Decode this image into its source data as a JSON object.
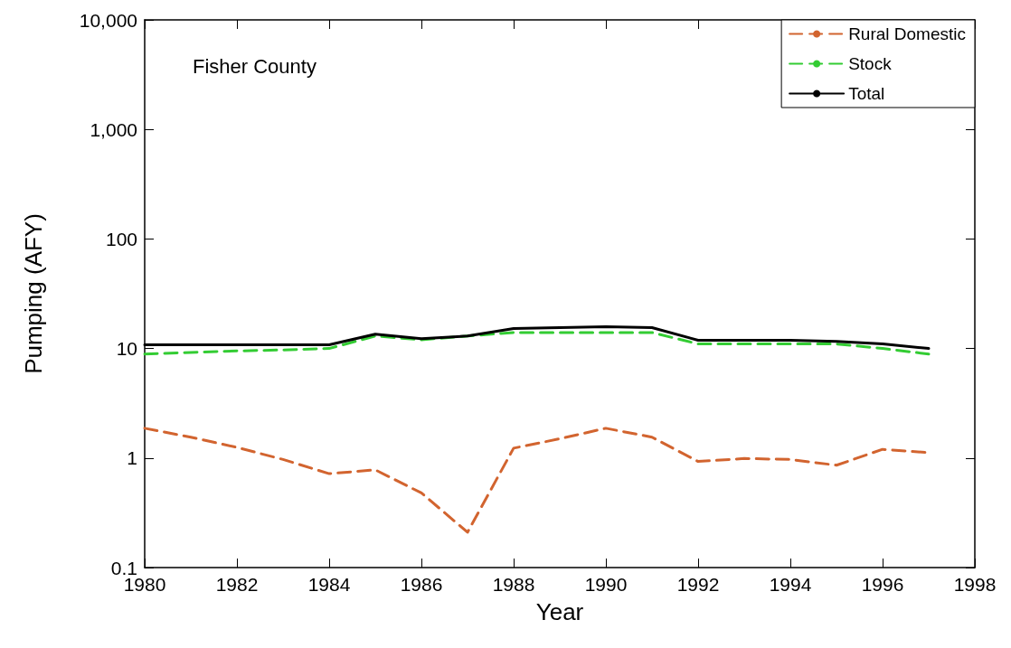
{
  "chart_data": {
    "type": "line",
    "xlabel": "Year",
    "ylabel": "Pumping (AFY)",
    "annotations": [
      "Fisher County"
    ],
    "x": [
      1980,
      1981,
      1982,
      1983,
      1984,
      1985,
      1986,
      1987,
      1988,
      1989,
      1990,
      1991,
      1992,
      1993,
      1994,
      1995,
      1996,
      1997
    ],
    "series": [
      {
        "name": "Rural Domestic",
        "color": "#d2642f",
        "line_style": "dashed",
        "values": [
          1.87,
          1.55,
          1.25,
          0.97,
          0.72,
          0.78,
          0.48,
          0.21,
          1.23,
          1.5,
          1.87,
          1.55,
          0.93,
          0.99,
          0.97,
          0.86,
          1.2,
          1.12
        ]
      },
      {
        "name": "Stock",
        "color": "#33cc33",
        "line_style": "dashed",
        "values": [
          8.9,
          9.2,
          9.5,
          9.7,
          10,
          13,
          12,
          13,
          14,
          14,
          14,
          14,
          11,
          11,
          11,
          11,
          10,
          8.9
        ]
      },
      {
        "name": "Total",
        "color": "#000000",
        "line_style": "solid",
        "values": [
          10.8,
          10.8,
          10.8,
          10.8,
          10.8,
          13.5,
          12.3,
          13,
          15.2,
          15.5,
          15.8,
          15.5,
          11.9,
          11.9,
          11.9,
          11.6,
          11,
          10
        ]
      }
    ],
    "xlim": [
      1980,
      1998
    ],
    "xticks": [
      1980,
      1982,
      1984,
      1986,
      1988,
      1990,
      1992,
      1994,
      1996,
      1998
    ],
    "ylim": [
      0.1,
      10000
    ],
    "yticks": [
      0.1,
      1,
      10,
      100,
      {
        "value": 1000,
        "label": "1,000"
      },
      {
        "value": 10000,
        "label": "10,000"
      }
    ],
    "log": "y",
    "grid": false,
    "legend": "top right",
    "marker": "none"
  }
}
